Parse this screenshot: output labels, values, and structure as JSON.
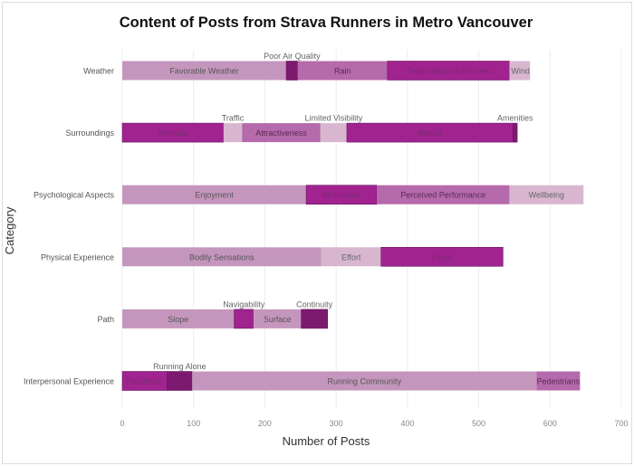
{
  "chart_data": {
    "type": "bar",
    "orientation": "horizontal",
    "stacked": true,
    "title": "Content of Posts from Strava Runners in Metro Vancouver",
    "xlabel": "Number of Posts",
    "ylabel": "Category",
    "xlim": [
      0,
      700
    ],
    "xticks": [
      0,
      100,
      200,
      300,
      400,
      500,
      600,
      700
    ],
    "grid": true,
    "legend": "none",
    "colors": {
      "light": "#d8b6d0",
      "medium": "#c596bd",
      "mauve": "#b56aab",
      "strong": "#a0238f",
      "dark": "#7c1a6f"
    },
    "categories": [
      {
        "name": "Weather",
        "segments": [
          {
            "label": "Favorable Weather",
            "value": 230,
            "color": "medium",
            "label_position": "inside"
          },
          {
            "label": "Poor Air Quality",
            "value": 16,
            "color": "dark",
            "label_position": "above"
          },
          {
            "label": "Rain",
            "value": 126,
            "color": "mauve",
            "label_position": "inside"
          },
          {
            "label": "Temperature Extremes",
            "value": 171,
            "color": "strong",
            "label_position": "inside"
          },
          {
            "label": "Wind",
            "value": 29,
            "color": "light",
            "label_position": "inside"
          }
        ]
      },
      {
        "name": "Surroundings",
        "segments": [
          {
            "label": "Animals",
            "value": 142,
            "color": "strong",
            "label_position": "inside"
          },
          {
            "label": "Traffic",
            "value": 26,
            "color": "light",
            "label_position": "above"
          },
          {
            "label": "Attractiveness",
            "value": 110,
            "color": "mauve",
            "label_position": "inside"
          },
          {
            "label": "Limited Visibility",
            "value": 37,
            "color": "light",
            "label_position": "above"
          },
          {
            "label": "Nature",
            "value": 233,
            "color": "strong",
            "label_position": "inside"
          },
          {
            "label": "Amenities",
            "value": 6,
            "color": "dark",
            "label_position": "above"
          }
        ]
      },
      {
        "name": "Psychological Aspects",
        "segments": [
          {
            "label": "Enjoyment",
            "value": 258,
            "color": "medium",
            "label_position": "inside"
          },
          {
            "label": "Motivation",
            "value": 99,
            "color": "strong",
            "label_position": "inside"
          },
          {
            "label": "Perceived Performance",
            "value": 186,
            "color": "mauve",
            "label_position": "inside"
          },
          {
            "label": "Wellbeing",
            "value": 104,
            "color": "light",
            "label_position": "inside"
          }
        ]
      },
      {
        "name": "Physical Experience",
        "segments": [
          {
            "label": "Bodily Sensations",
            "value": 279,
            "color": "medium",
            "label_position": "inside"
          },
          {
            "label": "Effort",
            "value": 84,
            "color": "light",
            "label_position": "inside"
          },
          {
            "label": "Injury",
            "value": 171,
            "color": "strong",
            "label_position": "inside"
          }
        ]
      },
      {
        "name": "Path",
        "segments": [
          {
            "label": "Slope",
            "value": 157,
            "color": "medium",
            "label_position": "inside"
          },
          {
            "label": "Navigability",
            "value": 27,
            "color": "strong",
            "label_position": "above"
          },
          {
            "label": "Surface",
            "value": 67,
            "color": "medium",
            "label_position": "inside"
          },
          {
            "label": "Continuity",
            "value": 37,
            "color": "dark",
            "label_position": "above"
          }
        ]
      },
      {
        "name": "Interpersonal Experience",
        "segments": [
          {
            "label": "Pandemic",
            "value": 63,
            "color": "strong",
            "label_position": "inside"
          },
          {
            "label": "Running Alone",
            "value": 35,
            "color": "dark",
            "label_position": "above"
          },
          {
            "label": "Running Community",
            "value": 483,
            "color": "medium",
            "label_position": "inside"
          },
          {
            "label": "Pedestrians",
            "value": 61,
            "color": "mauve",
            "label_position": "inside"
          }
        ]
      }
    ]
  }
}
